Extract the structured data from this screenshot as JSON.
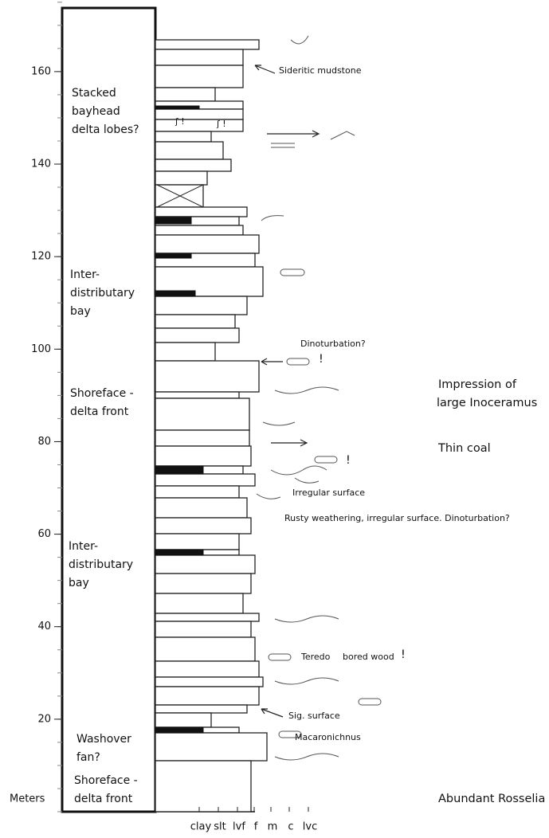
{
  "axis": {
    "label": "Meters",
    "ticks": [
      20,
      40,
      60,
      80,
      100,
      120,
      140,
      160
    ]
  },
  "grain_sizes": [
    "clay",
    "slt",
    "lvf",
    "f",
    "m",
    "c",
    "lvc"
  ],
  "intervals": [
    {
      "lines": [
        "Stacked",
        "bayhead",
        "delta lobes?"
      ]
    },
    {
      "lines": [
        "Inter-",
        "distributary",
        "bay"
      ]
    },
    {
      "lines": [
        "Shoreface -",
        "delta front"
      ]
    },
    {
      "lines": [
        "Inter-",
        "distributary",
        "bay"
      ]
    },
    {
      "lines": [
        "Washover",
        "fan?"
      ]
    },
    {
      "lines": [
        "Shoreface -",
        "delta front"
      ]
    }
  ],
  "annotations": [
    "Sideritic mudstone",
    "Dinoturbation?",
    "!",
    "Impression of",
    "large Inoceramus",
    "Thin coal",
    "!",
    "Irregular surface",
    "Rusty weathering, irregular surface. Dinoturbation?",
    "Teredo",
    "bored wood",
    "!",
    "Sig. surface",
    "Macaronichnus",
    "Abundant Rosselia"
  ],
  "symbols": [
    "ʃ !",
    "ʃ !"
  ]
}
